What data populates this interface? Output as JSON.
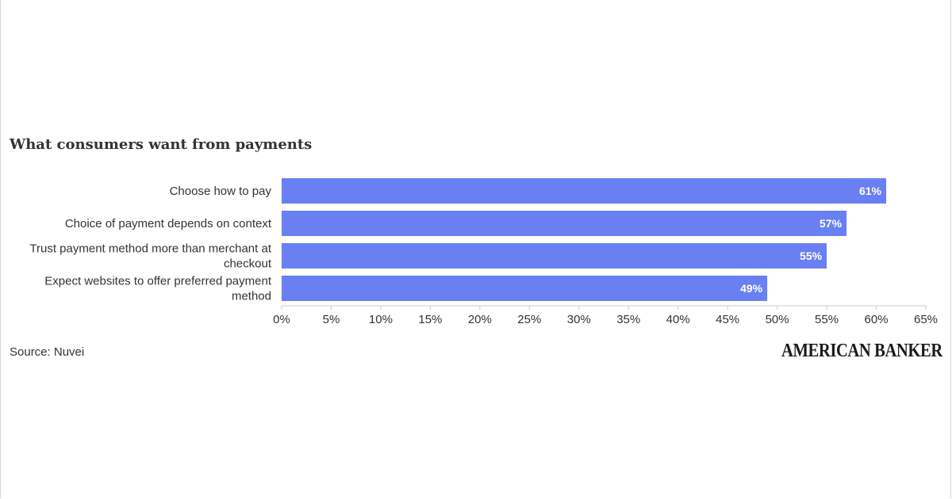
{
  "chart_data": {
    "type": "bar",
    "orientation": "horizontal",
    "title": "What consumers want from payments",
    "categories": [
      "Choose how to pay",
      "Choice of payment depends on context",
      "Trust payment method more than merchant at checkout",
      "Expect websites to offer preferred payment method"
    ],
    "category_lines": [
      [
        "Choose how to pay"
      ],
      [
        "Choice of payment depends on context"
      ],
      [
        "Trust payment method more than merchant at",
        "checkout"
      ],
      [
        "Expect websites to offer preferred payment",
        "method"
      ]
    ],
    "values": [
      61,
      57,
      55,
      49
    ],
    "data_labels": [
      "61%",
      "57%",
      "55%",
      "49%"
    ],
    "xlim": [
      0,
      65
    ],
    "xticks": [
      0,
      5,
      10,
      15,
      20,
      25,
      30,
      35,
      40,
      45,
      50,
      55,
      60,
      65
    ],
    "xtick_labels": [
      "0%",
      "5%",
      "10%",
      "15%",
      "20%",
      "25%",
      "30%",
      "35%",
      "40%",
      "45%",
      "50%",
      "55%",
      "60%",
      "65%"
    ],
    "bar_color": "#6a80f2",
    "label_color": "#ffffff",
    "grid": false
  },
  "source": "Source: Nuvei",
  "brand": "AMERICAN BANKER"
}
